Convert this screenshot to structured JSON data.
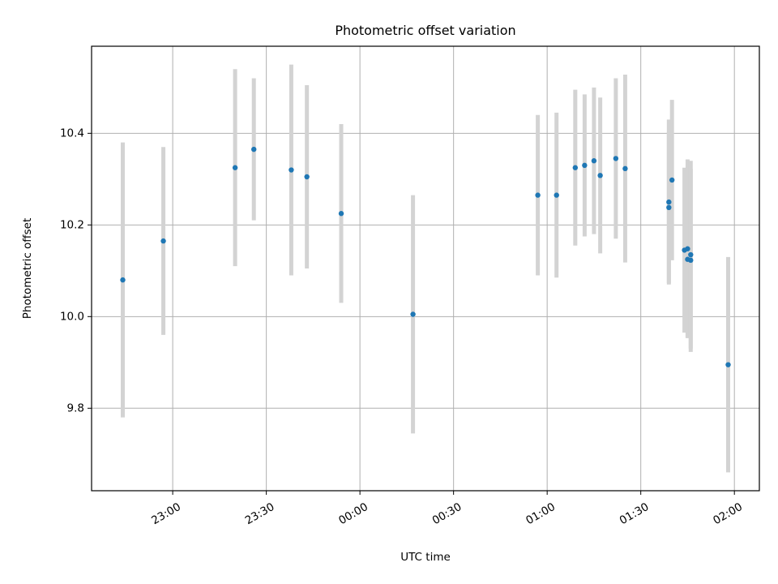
{
  "chart_data": {
    "type": "scatter",
    "title": "Photometric offset variation",
    "xlabel": "UTC time",
    "ylabel": "Photometric offset",
    "x_ticks": [
      "23:00",
      "23:30",
      "00:00",
      "00:30",
      "01:00",
      "01:30",
      "02:00"
    ],
    "y_ticks": [
      "9.8",
      "10.0",
      "10.2",
      "10.4"
    ],
    "grid": true,
    "ylim": [
      9.62,
      10.59
    ],
    "xlim": [
      "22:34",
      "02:08"
    ],
    "colors": {
      "points": "#1f77b4",
      "errorbars": "#d3d3d3",
      "grid": "#b0b0b0"
    },
    "points": [
      {
        "x": "22:44",
        "y": 10.08,
        "err": 0.3
      },
      {
        "x": "22:57",
        "y": 10.165,
        "err": 0.205
      },
      {
        "x": "23:20",
        "y": 10.325,
        "err": 0.215
      },
      {
        "x": "23:26",
        "y": 10.365,
        "err": 0.155
      },
      {
        "x": "23:38",
        "y": 10.32,
        "err": 0.23
      },
      {
        "x": "23:43",
        "y": 10.305,
        "err": 0.2
      },
      {
        "x": "23:54",
        "y": 10.225,
        "err": 0.195
      },
      {
        "x": "00:17",
        "y": 10.005,
        "err": 0.26
      },
      {
        "x": "00:57",
        "y": 10.265,
        "err": 0.175
      },
      {
        "x": "01:03",
        "y": 10.265,
        "err": 0.18
      },
      {
        "x": "01:09",
        "y": 10.325,
        "err": 0.17
      },
      {
        "x": "01:12",
        "y": 10.33,
        "err": 0.155
      },
      {
        "x": "01:15",
        "y": 10.34,
        "err": 0.16
      },
      {
        "x": "01:17",
        "y": 10.308,
        "err": 0.17
      },
      {
        "x": "01:22",
        "y": 10.345,
        "err": 0.175
      },
      {
        "x": "01:25",
        "y": 10.323,
        "err": 0.205
      },
      {
        "x": "01:39",
        "y": 10.238,
        "err": 0.165
      },
      {
        "x": "01:39",
        "y": 10.25,
        "err": 0.18
      },
      {
        "x": "01:40",
        "y": 10.298,
        "err": 0.175
      },
      {
        "x": "01:44",
        "y": 10.145,
        "err": 0.18
      },
      {
        "x": "01:45",
        "y": 10.125,
        "err": 0.17
      },
      {
        "x": "01:45",
        "y": 10.148,
        "err": 0.195
      },
      {
        "x": "01:46",
        "y": 10.123,
        "err": 0.2
      },
      {
        "x": "01:46",
        "y": 10.135,
        "err": 0.205
      },
      {
        "x": "01:58",
        "y": 9.895,
        "err": 0.235
      }
    ]
  }
}
